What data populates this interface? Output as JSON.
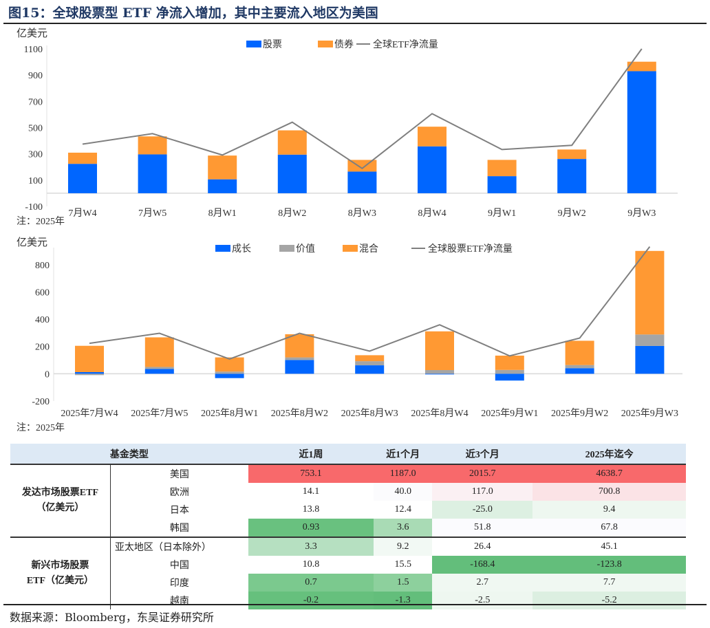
{
  "title": "图15：全球股票型 ETF 净流入增加，其中主要流入地区为美国",
  "chart_data": [
    {
      "type": "bar",
      "stacked": true,
      "unit_label": "亿美元",
      "note": "注：2025年",
      "categories": [
        "7月W4",
        "7月W5",
        "8月W1",
        "8月W2",
        "8月W3",
        "8月W4",
        "9月W1",
        "9月W2",
        "9月W3"
      ],
      "ylim": [
        -100,
        1100
      ],
      "yticks": [
        -100,
        100,
        300,
        500,
        700,
        900,
        1100
      ],
      "legend_position": "top",
      "series": [
        {
          "name": "股票",
          "kind": "bar",
          "color": "#0066ff",
          "values": [
            224,
            296,
            106,
            294,
            165,
            357,
            130,
            261,
            930
          ]
        },
        {
          "name": "债券",
          "kind": "bar",
          "color": "#ff9933",
          "values": [
            85,
            137,
            181,
            185,
            89,
            150,
            124,
            72,
            72
          ]
        },
        {
          "name": "全球ETF净流量",
          "kind": "line",
          "color": "#7f7f7f",
          "values": [
            374,
            454,
            291,
            541,
            189,
            606,
            333,
            365,
            1100
          ]
        }
      ]
    },
    {
      "type": "bar",
      "stacked": true,
      "unit_label": "亿美元",
      "note": "注：2025年",
      "categories": [
        "2025年7月W4",
        "2025年7月W5",
        "2025年8月W1",
        "2025年8月W2",
        "2025年8月W3",
        "2025年8月W4",
        "2025年9月W1",
        "2025年9月W2",
        "2025年9月W3"
      ],
      "ylim": [
        -200,
        900
      ],
      "yticks": [
        -200,
        0,
        200,
        400,
        600,
        800
      ],
      "legend_position": "top",
      "series": [
        {
          "name": "成长",
          "kind": "bar",
          "color": "#0066ff",
          "values": [
            12,
            35,
            -32,
            101,
            62,
            -5,
            -50,
            41,
            204
          ]
        },
        {
          "name": "价值",
          "kind": "bar",
          "color": "#a5a5a5",
          "values": [
            -10,
            15,
            16,
            19,
            30,
            27,
            28,
            23,
            84
          ]
        },
        {
          "name": "混合",
          "kind": "bar",
          "color": "#ff9933",
          "values": [
            193,
            217,
            104,
            170,
            44,
            284,
            105,
            178,
            613
          ]
        },
        {
          "name": "全球股票ETF净流量",
          "kind": "line",
          "color": "#7f7f7f",
          "values": [
            223,
            297,
            108,
            297,
            166,
            359,
            131,
            262,
            932
          ]
        }
      ]
    }
  ],
  "table": {
    "headers": [
      "基金类型",
      "近1周",
      "近1个月",
      "近3个月",
      "2025年迄今"
    ],
    "groups": [
      {
        "label": "发达市场股票ETF（亿美元）",
        "label_lines": [
          "发达市场股票ETF",
          "（亿美元）"
        ],
        "rows": [
          {
            "region": "美国",
            "values": [
              "753.1",
              "1187.0",
              "2015.7",
              "4638.7"
            ],
            "colors": [
              "#f8696b",
              "#f8696b",
              "#f8696b",
              "#f8696b"
            ]
          },
          {
            "region": "欧洲",
            "values": [
              "14.1",
              "40.0",
              "117.0",
              "700.8"
            ],
            "colors": [
              "#ffffff",
              "#fbfbfd",
              "#fbf0f3",
              "#fbe3e6"
            ]
          },
          {
            "region": "日本",
            "values": [
              "13.8",
              "12.4",
              "-25.0",
              "9.4"
            ],
            "colors": [
              "#ffffff",
              "#ffffff",
              "#ddf0e2",
              "#eef7f0"
            ]
          },
          {
            "region": "韩国",
            "values": [
              "0.93",
              "3.6",
              "51.8",
              "67.8"
            ],
            "colors": [
              "#69c17f",
              "#a9dbb5",
              "#fbfbfe",
              "#fbfbfe"
            ]
          }
        ]
      },
      {
        "label": "新兴市场股票ETF（亿美元）",
        "label_lines": [
          "新兴市场股票",
          "ETF（亿美元）"
        ],
        "rows": [
          {
            "region": "亚太地区（日本除外）",
            "values": [
              "3.3",
              "9.2",
              "26.4",
              "45.1"
            ],
            "colors": [
              "#b6e0c1",
              "#f2f9f4",
              "#ffffff",
              "#ffffff"
            ]
          },
          {
            "region": "中国",
            "values": [
              "10.8",
              "15.5",
              "-168.4",
              "-123.8"
            ],
            "colors": [
              "#ffffff",
              "#ffffff",
              "#63be7b",
              "#63be7b"
            ]
          },
          {
            "region": "印度",
            "values": [
              "0.7",
              "1.5",
              "2.7",
              "7.7"
            ],
            "colors": [
              "#7bc98e",
              "#8dd09d",
              "#f0f8f2",
              "#f0f8f2"
            ]
          },
          {
            "region": "越南",
            "values": [
              "-0.2",
              "-1.3",
              "-2.5",
              "-5.2"
            ],
            "colors": [
              "#66c07d",
              "#63be7b",
              "#eef7f0",
              "#dcefe1"
            ]
          }
        ]
      }
    ]
  },
  "source": "数据来源：Bloomberg，东吴证券研究所"
}
